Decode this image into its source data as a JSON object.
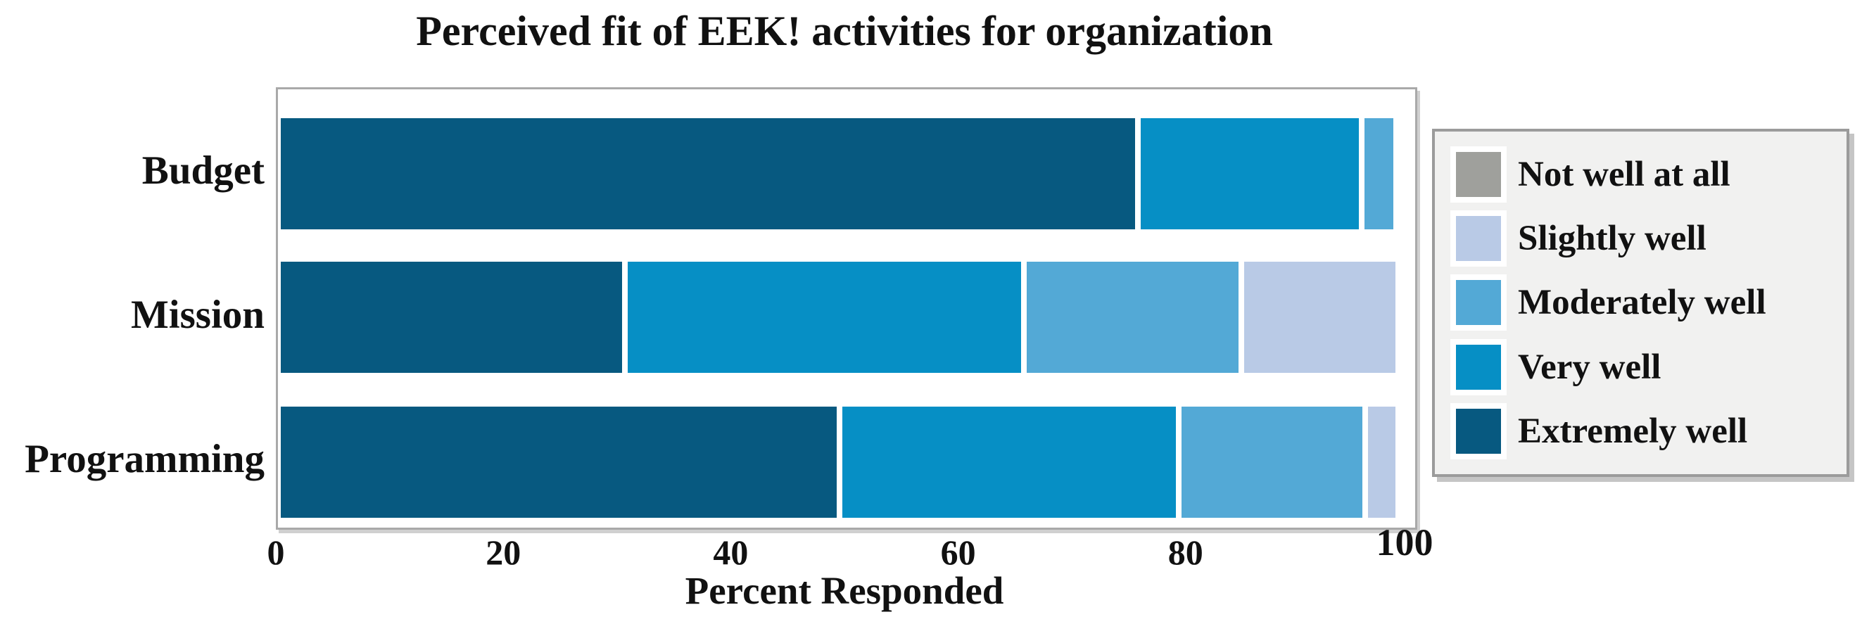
{
  "chart_data": {
    "type": "bar",
    "orientation": "horizontal-stacked",
    "title": "Perceived fit of EEK! activities for organization",
    "xlabel": "Percent Responded",
    "ylabel": "",
    "categories": [
      "Budget",
      "Mission",
      "Programming"
    ],
    "series": [
      {
        "name": "Not well at all",
        "color": "#9fa09c",
        "values": [
          0,
          0,
          0
        ]
      },
      {
        "name": "Slightly well",
        "color": "#b9cae6",
        "values": [
          0,
          13.8,
          2.9
        ]
      },
      {
        "name": "Moderately well",
        "color": "#53a9d6",
        "values": [
          3.0,
          19.1,
          16.4
        ]
      },
      {
        "name": "Very well",
        "color": "#068fc5",
        "values": [
          19.7,
          35.1,
          29.8
        ]
      },
      {
        "name": "Extremely well",
        "color": "#075980",
        "values": [
          75.6,
          30.5,
          49.4
        ]
      }
    ],
    "stack_order": [
      "Extremely well",
      "Very well",
      "Moderately well",
      "Slightly well",
      "Not well at all"
    ],
    "xlim": [
      0,
      100
    ],
    "x_ticks": [
      0,
      20,
      40,
      60,
      80,
      100
    ],
    "legend_position": "right",
    "legend_order": [
      "Not well at all",
      "Slightly well",
      "Moderately well",
      "Very well",
      "Extremely well"
    ],
    "grid": false
  },
  "style": {
    "plot_border_color": "#a9a9a9",
    "segment_edge_color": "#ffffff",
    "legend_background": "#f1f1f0",
    "legend_border_color": "#9b9b9b",
    "text_color": "#111111",
    "background": "#ffffff"
  }
}
